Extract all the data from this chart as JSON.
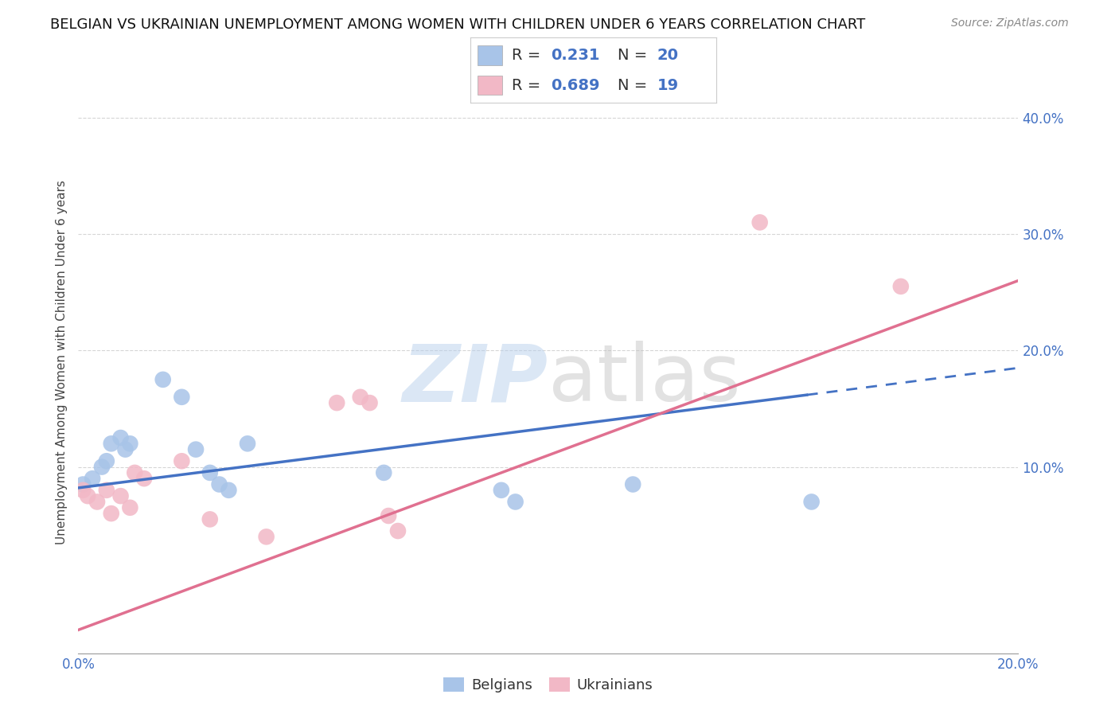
{
  "title": "BELGIAN VS UKRAINIAN UNEMPLOYMENT AMONG WOMEN WITH CHILDREN UNDER 6 YEARS CORRELATION CHART",
  "source": "Source: ZipAtlas.com",
  "ylabel": "Unemployment Among Women with Children Under 6 years",
  "xlim": [
    0.0,
    0.2
  ],
  "ylim": [
    -0.06,
    0.44
  ],
  "yticks": [
    0.1,
    0.2,
    0.3,
    0.4
  ],
  "ytick_labels": [
    "10.0%",
    "20.0%",
    "30.0%",
    "40.0%"
  ],
  "xticks": [
    0.0,
    0.04,
    0.08,
    0.12,
    0.16,
    0.2
  ],
  "xtick_labels": [
    "0.0%",
    "",
    "",
    "",
    "",
    "20.0%"
  ],
  "watermark_zip": "ZIP",
  "watermark_atlas": "atlas",
  "belgian_color": "#a8c4e8",
  "ukrainian_color": "#f2b8c6",
  "belgian_line_color": "#4472c4",
  "ukrainian_line_color": "#e07090",
  "belgian_R": "0.231",
  "belgian_N": "20",
  "ukrainian_R": "0.689",
  "ukrainian_N": "19",
  "belgian_x": [
    0.001,
    0.003,
    0.005,
    0.006,
    0.007,
    0.009,
    0.01,
    0.011,
    0.018,
    0.022,
    0.025,
    0.028,
    0.03,
    0.032,
    0.036,
    0.065,
    0.09,
    0.093,
    0.118,
    0.156
  ],
  "belgian_y": [
    0.085,
    0.09,
    0.1,
    0.105,
    0.12,
    0.125,
    0.115,
    0.12,
    0.175,
    0.16,
    0.115,
    0.095,
    0.085,
    0.08,
    0.12,
    0.095,
    0.08,
    0.07,
    0.085,
    0.07
  ],
  "ukrainian_x": [
    0.001,
    0.002,
    0.004,
    0.006,
    0.007,
    0.009,
    0.011,
    0.012,
    0.014,
    0.022,
    0.028,
    0.04,
    0.055,
    0.06,
    0.062,
    0.066,
    0.068,
    0.145,
    0.175
  ],
  "ukrainian_y": [
    0.08,
    0.075,
    0.07,
    0.08,
    0.06,
    0.075,
    0.065,
    0.095,
    0.09,
    0.105,
    0.055,
    0.04,
    0.155,
    0.16,
    0.155,
    0.058,
    0.045,
    0.31,
    0.255
  ],
  "bg_color": "#ffffff",
  "grid_color": "#cccccc",
  "axis_color": "#4472c4",
  "title_fontsize": 13,
  "label_fontsize": 11,
  "tick_fontsize": 12
}
